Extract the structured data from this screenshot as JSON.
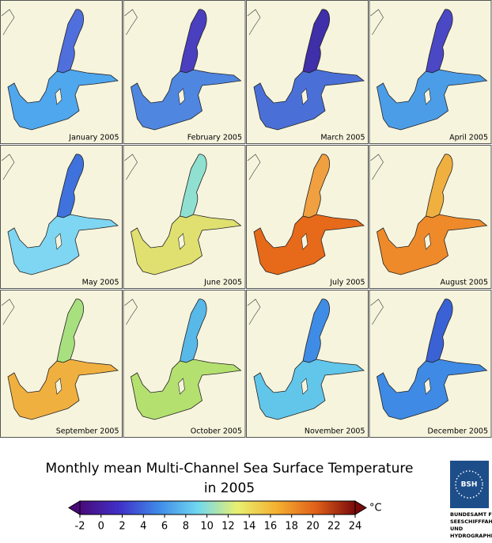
{
  "panels": [
    {
      "label": "January 2005",
      "color": "#4f6fdc",
      "south_color": "#4fa7ee"
    },
    {
      "label": "February 2005",
      "color": "#4a3fbf",
      "south_color": "#4f86e0"
    },
    {
      "label": "March 2005",
      "color": "#3f2fa8",
      "south_color": "#4a70d8"
    },
    {
      "label": "April 2005",
      "color": "#4a48c4",
      "south_color": "#4c9de8"
    },
    {
      "label": "May 2005",
      "color": "#3f72dc",
      "south_color": "#7fd6f2"
    },
    {
      "label": "June 2005",
      "color": "#8fe0d0",
      "south_color": "#e0e070"
    },
    {
      "label": "July 2005",
      "color": "#f0a040",
      "south_color": "#e66a1a"
    },
    {
      "label": "August 2005",
      "color": "#f0b040",
      "south_color": "#ee8a2a"
    },
    {
      "label": "September 2005",
      "color": "#a8e080",
      "south_color": "#f0b040"
    },
    {
      "label": "October 2005",
      "color": "#58b8e8",
      "south_color": "#b4e070"
    },
    {
      "label": "November 2005",
      "color": "#3f8ce6",
      "south_color": "#62c6ea"
    },
    {
      "label": "December 2005",
      "color": "#3a62d4",
      "south_color": "#3f8ae4"
    }
  ],
  "title": [
    "Monthly mean Multi-Channel Sea Surface Temperature",
    "in 2005"
  ],
  "colorbar": {
    "clim": [
      -2,
      24
    ],
    "ticks": [
      -2,
      0,
      2,
      4,
      6,
      8,
      10,
      12,
      14,
      16,
      18,
      20,
      22,
      24
    ],
    "unit": "°C",
    "colors": [
      "#4a0a7a",
      "#4030c8",
      "#3f8ae8",
      "#70d8f0",
      "#e8f070",
      "#f5b030",
      "#e0601a",
      "#7a0a0a"
    ]
  },
  "logo": {
    "mark": "BSH",
    "lines": [
      "BUNDESAMT FÜR",
      "SEESCHIFFFAHRT",
      "UND",
      "HYDROGRAPHIE"
    ]
  }
}
